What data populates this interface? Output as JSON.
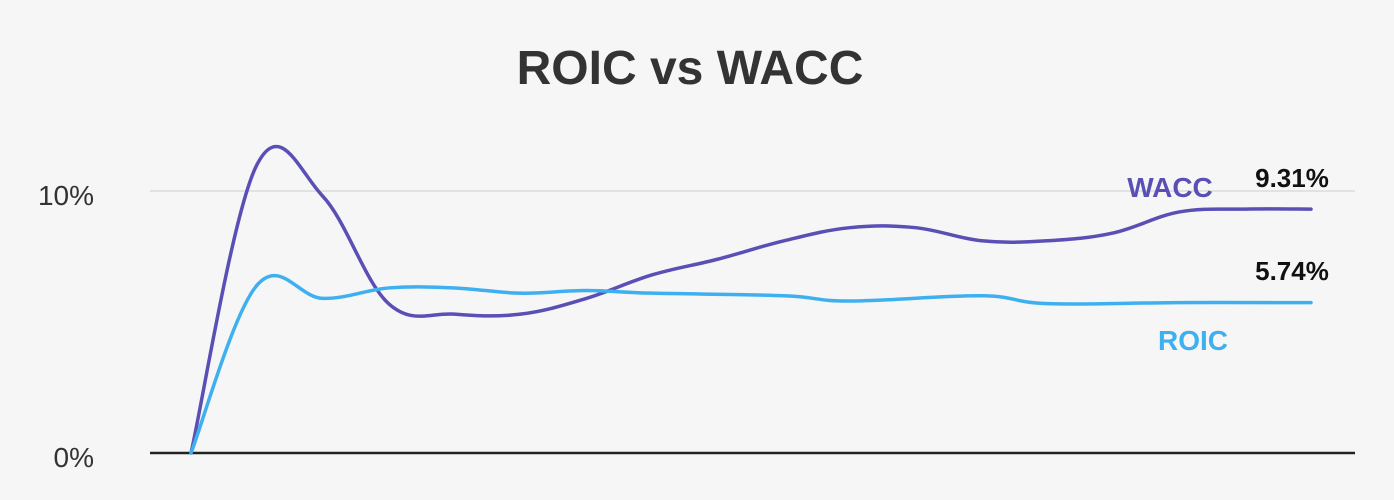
{
  "chart_data": {
    "type": "line",
    "title": "ROIC vs WACC",
    "xlabel": "",
    "ylabel": "",
    "ylim": [
      0,
      10
    ],
    "yticks": [
      {
        "value": 0,
        "label": "0%"
      },
      {
        "value": 10,
        "label": "10%"
      }
    ],
    "grid": true,
    "x": [
      0,
      1,
      2,
      3,
      4,
      5,
      6,
      7,
      8,
      9,
      10,
      11,
      12,
      13,
      14,
      15,
      16,
      17
    ],
    "series": [
      {
        "name": "WACC",
        "color": "#5a4fb5",
        "values": [
          0,
          11.0,
          9.8,
          5.7,
          5.3,
          5.3,
          5.9,
          6.8,
          7.4,
          8.1,
          8.6,
          8.6,
          8.1,
          8.1,
          8.4,
          9.2,
          9.31,
          9.31
        ],
        "end_label": "9.31%"
      },
      {
        "name": "ROIC",
        "color": "#3fb0ef",
        "values": [
          0,
          6.4,
          5.9,
          6.3,
          6.3,
          6.1,
          6.2,
          6.1,
          6.0,
          5.8,
          6.0,
          5.7,
          5.74,
          5.74
        ],
        "x": [
          0,
          1,
          2,
          3,
          4,
          5,
          6,
          7,
          9,
          10,
          12,
          13,
          15,
          17
        ],
        "end_label": "5.74%"
      }
    ]
  }
}
